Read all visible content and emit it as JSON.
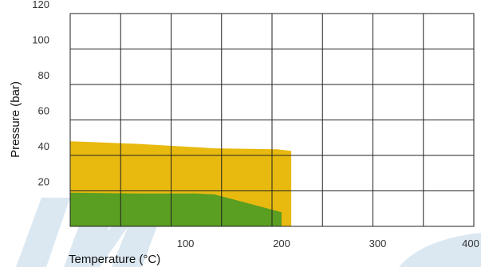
{
  "chart_data": {
    "type": "area",
    "xlabel": "Temperature (°C)",
    "ylabel": "Pressure (bar)",
    "xlim": [
      -20,
      400
    ],
    "ylim": [
      0,
      120
    ],
    "x_ticks": [
      100,
      200,
      300,
      400
    ],
    "y_ticks": [
      20,
      40,
      60,
      80,
      100,
      120
    ],
    "x_tick_labels": [
      "100",
      "200",
      "300",
      "400"
    ],
    "y_tick_labels": [
      "20",
      "40",
      "60",
      "80",
      "100",
      "120"
    ],
    "grid": true,
    "series": [
      {
        "color": "#e8b90f",
        "points": [
          [
            -20,
            48
          ],
          [
            50,
            46.5
          ],
          [
            130,
            44
          ],
          [
            195,
            43.5
          ],
          [
            210,
            42.5
          ],
          [
            210,
            0
          ]
        ]
      },
      {
        "color": "#5a9e22",
        "points": [
          [
            -20,
            19
          ],
          [
            50,
            18.5
          ],
          [
            110,
            18.5
          ],
          [
            130,
            18
          ],
          [
            200,
            8
          ],
          [
            200,
            0
          ]
        ]
      }
    ],
    "watermark_color": "#cfe0ec"
  }
}
